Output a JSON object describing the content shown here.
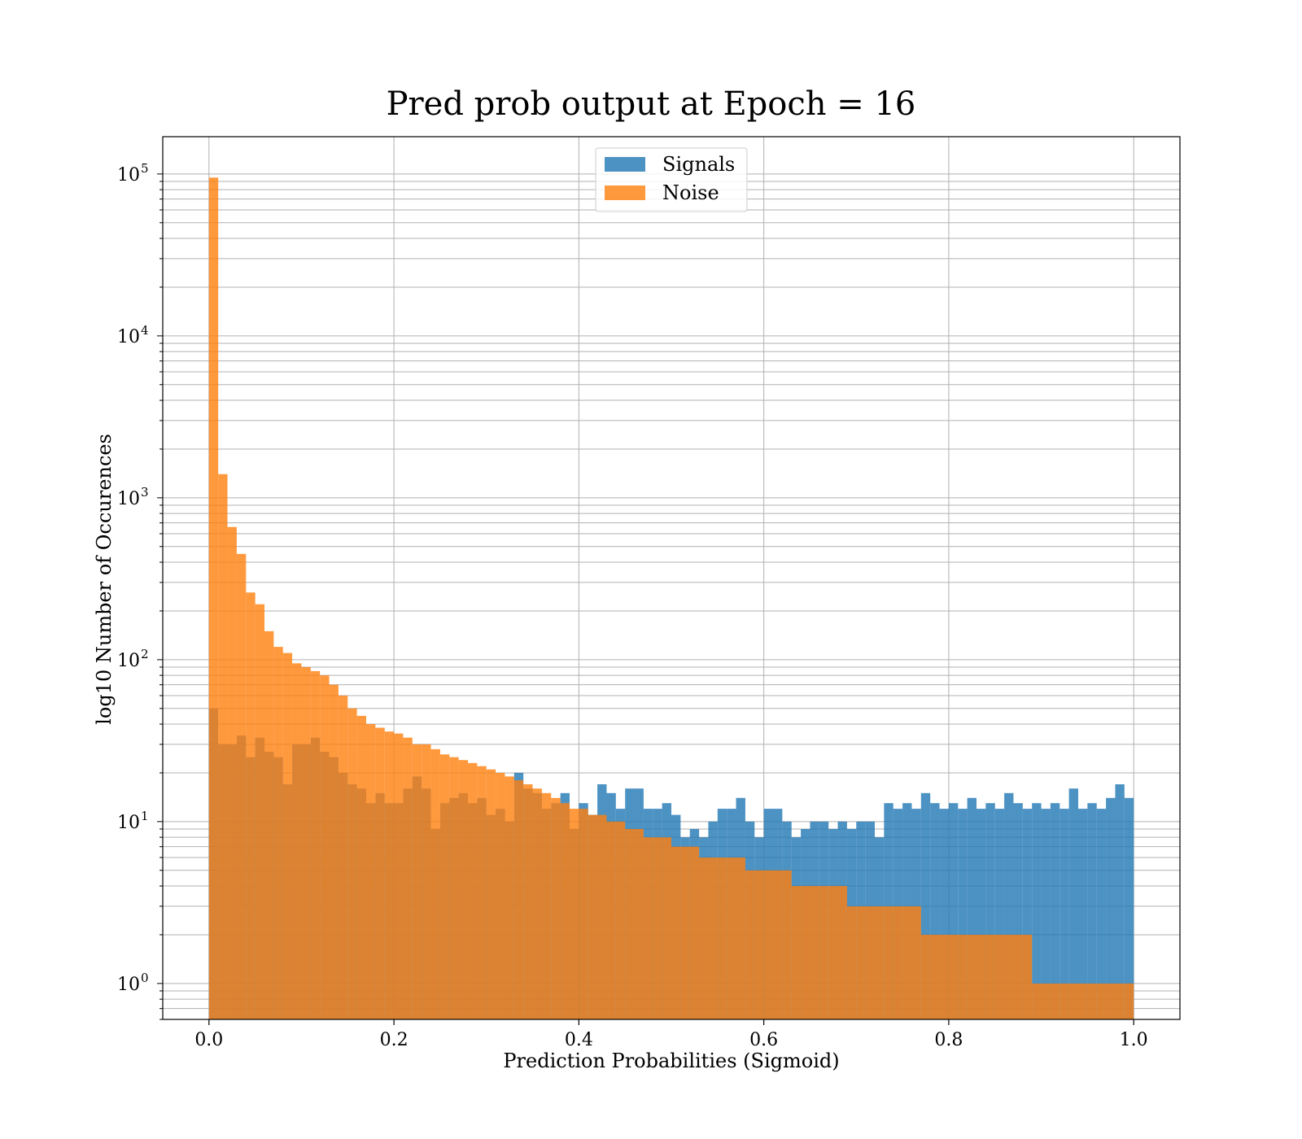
{
  "chart_data": {
    "type": "bar",
    "title": "Pred prob output at Epoch = 16",
    "xlabel": "Prediction Probabilities (Sigmoid)",
    "ylabel": "log10 Number of Occurences",
    "xlim": [
      -0.05,
      1.05
    ],
    "ylim": [
      0.6,
      170000
    ],
    "yscale": "log",
    "grid": true,
    "legend_position": "top-center",
    "bins": {
      "start": 0.0,
      "end": 1.0,
      "count": 100
    },
    "xticks": [
      {
        "value": 0.0,
        "label": "0.0"
      },
      {
        "value": 0.2,
        "label": "0.2"
      },
      {
        "value": 0.4,
        "label": "0.4"
      },
      {
        "value": 0.6,
        "label": "0.6"
      },
      {
        "value": 0.8,
        "label": "0.8"
      },
      {
        "value": 1.0,
        "label": "1.0"
      }
    ],
    "yticks": [
      {
        "value": 1,
        "base": "10",
        "exp": "0"
      },
      {
        "value": 10,
        "base": "10",
        "exp": "1"
      },
      {
        "value": 100,
        "base": "10",
        "exp": "2"
      },
      {
        "value": 1000,
        "base": "10",
        "exp": "3"
      },
      {
        "value": 10000,
        "base": "10",
        "exp": "4"
      },
      {
        "value": 100000,
        "base": "10",
        "exp": "5"
      }
    ],
    "series": [
      {
        "name": "Signals",
        "color": "#1f77b4",
        "values": [
          50,
          30,
          30,
          34,
          25,
          33,
          27,
          25,
          17,
          30,
          30,
          33,
          27,
          25,
          20,
          17,
          16,
          13,
          15,
          13,
          13,
          16,
          19,
          16,
          9,
          13,
          14,
          15,
          13,
          14,
          11,
          12,
          10,
          20,
          16,
          15,
          12,
          13,
          15,
          9,
          13,
          11,
          17,
          15,
          12,
          16,
          16,
          12,
          12,
          13,
          11,
          8,
          9,
          8,
          10,
          12,
          12,
          14,
          10,
          8,
          12,
          12,
          10,
          8,
          9,
          10,
          10,
          9,
          10,
          9,
          10,
          10,
          8,
          13,
          12,
          13,
          12,
          15,
          13,
          12,
          13,
          12,
          14,
          12,
          13,
          12,
          15,
          13,
          12,
          13,
          12,
          13,
          12,
          16,
          12,
          13,
          12,
          14,
          17,
          14
        ]
      },
      {
        "name": "Noise",
        "color": "#ff7f0e",
        "values": [
          95000,
          1400,
          660,
          450,
          260,
          220,
          150,
          120,
          110,
          95,
          90,
          85,
          80,
          70,
          60,
          50,
          45,
          40,
          38,
          36,
          35,
          33,
          30,
          30,
          28,
          26,
          25,
          24,
          23,
          22,
          21,
          20,
          19,
          18,
          17,
          16,
          15,
          14,
          13,
          12,
          12,
          11,
          11,
          10,
          10,
          9,
          9,
          8,
          8,
          8,
          7,
          7,
          7,
          6,
          6,
          6,
          6,
          6,
          5,
          5,
          5,
          5,
          5,
          4,
          4,
          4,
          4,
          4,
          4,
          3,
          3,
          3,
          3,
          3,
          3,
          3,
          3,
          2,
          2,
          2,
          2,
          2,
          2,
          2,
          2,
          2,
          2,
          2,
          2,
          1,
          1,
          1,
          1,
          1,
          1,
          1,
          1,
          1,
          1,
          1
        ]
      }
    ]
  }
}
